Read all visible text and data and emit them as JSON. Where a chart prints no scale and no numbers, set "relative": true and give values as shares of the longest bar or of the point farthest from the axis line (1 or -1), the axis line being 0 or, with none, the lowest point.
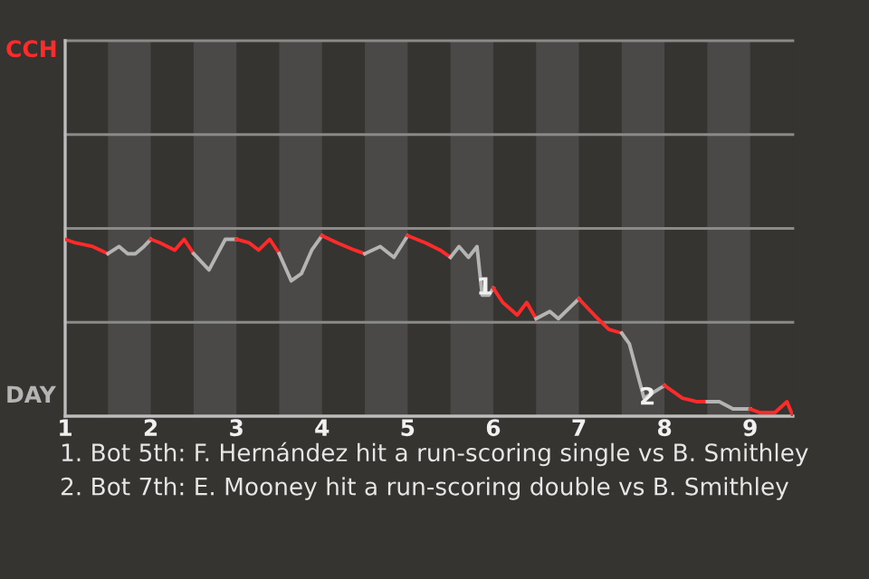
{
  "chart_data": {
    "type": "line",
    "relative": true,
    "xlim": [
      1,
      9.5
    ],
    "xticks": [
      1,
      2,
      3,
      4,
      5,
      6,
      7,
      8,
      9
    ],
    "marker": "none",
    "line_style": "solid",
    "ref_lines": [
      {
        "axis": "y",
        "value": 0.52,
        "color": "#8a8a8a"
      },
      {
        "axis": "y",
        "value": 1.04,
        "color": "#8a8a8a"
      },
      {
        "axis": "y",
        "value": 1.56,
        "color": "#8a8a8a"
      },
      {
        "axis": "y",
        "value": 2.08,
        "color": "#8a8a8a"
      }
    ],
    "bands": [
      {
        "axis": "x",
        "from": 1.5,
        "to": 2,
        "color": "#4a4948"
      },
      {
        "axis": "x",
        "from": 2.5,
        "to": 3,
        "color": "#4a4948"
      },
      {
        "axis": "x",
        "from": 3.5,
        "to": 4,
        "color": "#4a4948"
      },
      {
        "axis": "x",
        "from": 4.5,
        "to": 5,
        "color": "#4a4948"
      },
      {
        "axis": "x",
        "from": 5.5,
        "to": 6,
        "color": "#4a4948"
      },
      {
        "axis": "x",
        "from": 6.5,
        "to": 7,
        "color": "#4a4948"
      },
      {
        "axis": "x",
        "from": 7.5,
        "to": 8,
        "color": "#4a4948"
      },
      {
        "axis": "x",
        "from": 8.5,
        "to": 9,
        "color": "#4a4948"
      }
    ],
    "series": [
      {
        "color": "#ff2a2a",
        "x": [
          1,
          1.12,
          1.32,
          1.5
        ],
        "values": [
          0.98,
          0.96,
          0.94,
          0.9
        ]
      },
      {
        "color": "#b4b4b4",
        "x": [
          1.5,
          1.63,
          1.73,
          1.82,
          1.92,
          2
        ],
        "values": [
          0.9,
          0.94,
          0.9,
          0.9,
          0.94,
          0.98
        ]
      },
      {
        "color": "#ff2a2a",
        "x": [
          2,
          2.11,
          2.28,
          2.39,
          2.5
        ],
        "values": [
          0.98,
          0.96,
          0.92,
          0.98,
          0.9
        ]
      },
      {
        "color": "#b4b4b4",
        "x": [
          2.5,
          2.68,
          2.87,
          3
        ],
        "values": [
          0.9,
          0.81,
          0.98,
          0.98
        ]
      },
      {
        "color": "#ff2a2a",
        "x": [
          3,
          3.15,
          3.26,
          3.39,
          3.5
        ],
        "values": [
          0.98,
          0.96,
          0.92,
          0.98,
          0.9
        ]
      },
      {
        "color": "#b4b4b4",
        "x": [
          3.5,
          3.64,
          3.76,
          3.88,
          4
        ],
        "values": [
          0.9,
          0.75,
          0.79,
          0.92,
          1
        ]
      },
      {
        "color": "#ff2a2a",
        "x": [
          4,
          4.18,
          4.38,
          4.5
        ],
        "values": [
          1,
          0.96,
          0.92,
          0.9
        ]
      },
      {
        "color": "#b4b4b4",
        "x": [
          4.5,
          4.68,
          4.84,
          5
        ],
        "values": [
          0.9,
          0.94,
          0.88,
          1
        ]
      },
      {
        "color": "#ff2a2a",
        "x": [
          5,
          5.21,
          5.38,
          5.5
        ],
        "values": [
          1,
          0.96,
          0.92,
          0.88
        ]
      },
      {
        "color": "#b4b4b4",
        "x": [
          5.5,
          5.6,
          5.71,
          5.81,
          5.87,
          5.95,
          6
        ],
        "values": [
          0.88,
          0.94,
          0.88,
          0.94,
          0.67,
          0.67,
          0.71
        ]
      },
      {
        "color": "#ff2a2a",
        "x": [
          6,
          6.11,
          6.28,
          6.39,
          6.5
        ],
        "values": [
          0.71,
          0.63,
          0.56,
          0.63,
          0.54
        ]
      },
      {
        "color": "#b4b4b4",
        "x": [
          6.5,
          6.66,
          6.76,
          7
        ],
        "values": [
          0.54,
          0.58,
          0.54,
          0.65
        ]
      },
      {
        "color": "#ff2a2a",
        "x": [
          7,
          7.18,
          7.35,
          7.5
        ],
        "values": [
          0.65,
          0.56,
          0.48,
          0.46
        ]
      },
      {
        "color": "#b4b4b4",
        "x": [
          7.5,
          7.59,
          7.76,
          8
        ],
        "values": [
          0.46,
          0.4,
          0.1,
          0.17
        ]
      },
      {
        "color": "#ff2a2a",
        "x": [
          8,
          8.21,
          8.38,
          8.5
        ],
        "values": [
          0.17,
          0.1,
          0.08,
          0.08
        ]
      },
      {
        "color": "#b4b4b4",
        "x": [
          8.5,
          8.64,
          8.8,
          9
        ],
        "values": [
          0.08,
          0.08,
          0.04,
          0.04
        ]
      },
      {
        "color": "#ff2a2a",
        "x": [
          9,
          9.11,
          9.21,
          9.29,
          9.43,
          9.5
        ],
        "values": [
          0.04,
          0.02,
          0.02,
          0.02,
          0.08,
          0
        ]
      }
    ],
    "annotations": [
      "CCH",
      "DAY",
      {
        "text": "1",
        "x": 5.9,
        "y": 0.71
      },
      {
        "text": "2",
        "x": 7.8,
        "y": 0.1
      },
      "1. Bot 5th: F. Hernández hit a run-scoring single vs B. Smithley",
      "2. Bot 7th: E. Mooney hit a run-scoring double vs B. Smithley"
    ]
  }
}
